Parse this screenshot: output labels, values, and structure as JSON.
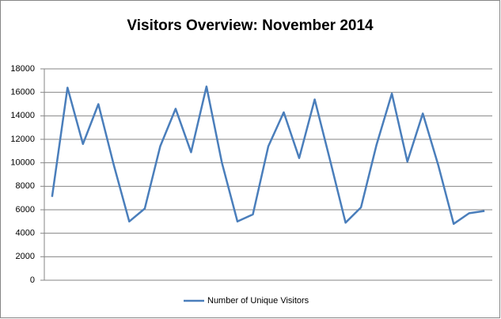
{
  "chart_data": {
    "type": "line",
    "title": "Visitors Overview: November 2014",
    "series": [
      {
        "name": "Number of Unique Visitors",
        "color": "#4a7ebb",
        "values": [
          7100,
          16400,
          11600,
          15000,
          9800,
          5000,
          6100,
          11400,
          14600,
          10900,
          16500,
          10000,
          5000,
          5600,
          11400,
          14300,
          10400,
          15400,
          10200,
          4900,
          6200,
          11500,
          15900,
          10100,
          14200,
          9800,
          4800,
          5700,
          5900
        ]
      }
    ],
    "ylim": [
      0,
      18000
    ],
    "yticks": [
      0,
      2000,
      4000,
      6000,
      8000,
      10000,
      12000,
      14000,
      16000,
      18000
    ],
    "grid": true,
    "legend": "bottom"
  }
}
